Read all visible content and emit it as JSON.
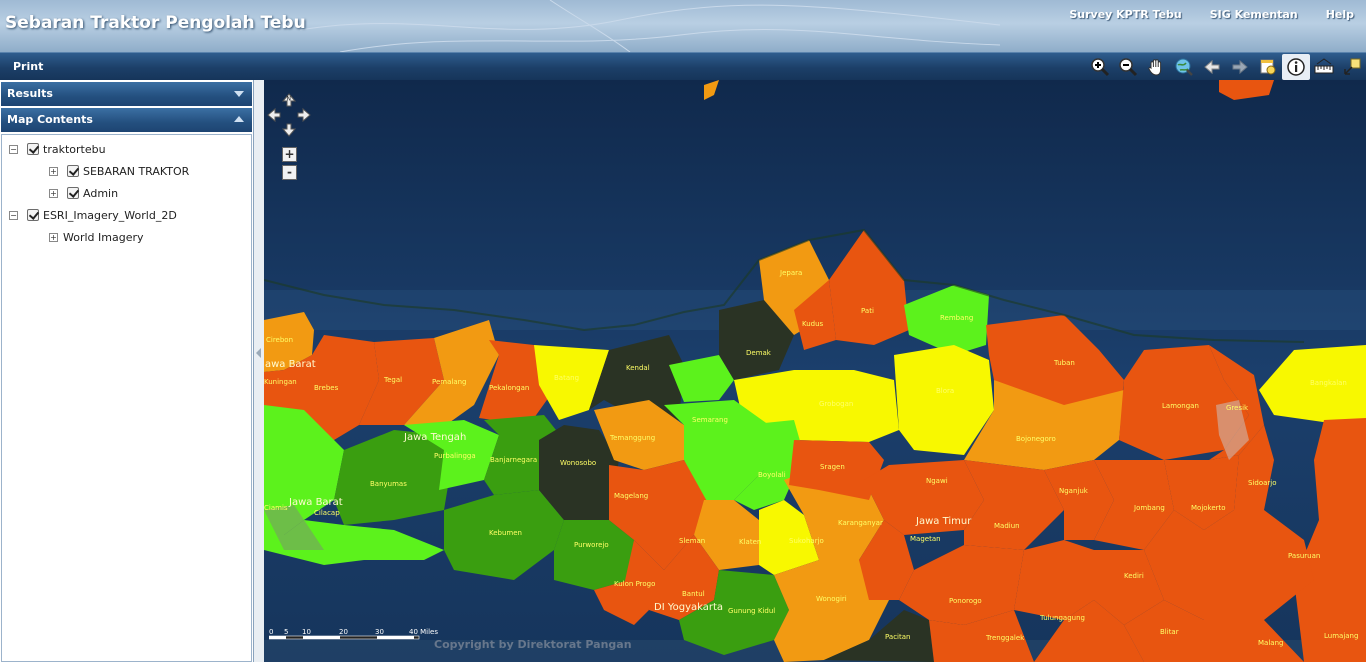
{
  "header": {
    "title": "Sebaran Traktor Pengolah Tebu",
    "links": [
      "Survey KPTR Tebu",
      "SIG Kementan",
      "Help"
    ]
  },
  "toolbar": {
    "print_label": "Print",
    "tools": [
      "zoom-in-icon",
      "zoom-out-icon",
      "pan-icon",
      "full-extent-icon",
      "back-icon",
      "forward-icon",
      "select-icon",
      "identify-icon",
      "measure-icon",
      "resize-icon"
    ]
  },
  "sidebar": {
    "results_label": "Results",
    "map_contents_label": "Map Contents",
    "layers": [
      {
        "label": "traktortebu"
      },
      {
        "label": "SEBARAN TRAKTOR"
      },
      {
        "label": "Admin"
      },
      {
        "label": "ESRI_Imagery_World_2D"
      },
      {
        "label": "World Imagery"
      }
    ]
  },
  "map": {
    "nav_north": "N",
    "zoom_in": "+",
    "zoom_out": "-",
    "scale_labels": [
      "0",
      "5",
      "10",
      "20",
      "30",
      "40 Miles"
    ],
    "copyright": "Copyright by Direktorat Pangan",
    "province_labels": [
      "Jawa Barat",
      "Jawa Tengah",
      "Jawa Barat",
      "Jawa Timur",
      "DI Yogyakarta"
    ],
    "district_labels": [
      "Jepara",
      "Pati",
      "Rembang",
      "Kudus",
      "Demak",
      "Cirebon",
      "Kuningan",
      "Brebes",
      "Tegal",
      "Pemalang",
      "Pekalongan",
      "Batang",
      "Kendal",
      "Semarang",
      "Grobogan",
      "Blora",
      "Tuban",
      "Bojonegoro",
      "Lamongan",
      "Gresik",
      "Bangkalan",
      "Purbalingga",
      "Banjarnegara",
      "Wonosobo",
      "Temanggung",
      "Boyolali",
      "Sragen",
      "Ngawi",
      "Madiun",
      "Nganjuk",
      "Jombang",
      "Mojokerto",
      "Sidoarjo",
      "Banyumas",
      "Cilacap",
      "Ciamis",
      "Kebumen",
      "Purworejo",
      "Magelang",
      "Klaten",
      "Sukoharjo",
      "Karanganyar",
      "Magetan",
      "Sleman",
      "Kulon Progo",
      "Bantul",
      "Gunung Kidul",
      "Wonogiri",
      "Pacitan",
      "Ponorogo",
      "Trenggalek",
      "Tulungagung",
      "Kediri",
      "Blitar",
      "Malang",
      "Pasuruan",
      "Lumajang"
    ]
  },
  "colors": {
    "header_bg": "#9fbad4",
    "toolbar_bg": "#1c3f68",
    "sea": "#0f2a4f",
    "high": "#e85510",
    "mid_high": "#f29a12",
    "mid": "#f8f800",
    "low": "#5cf21c",
    "lower": "#3a9e10",
    "none": "#2a3324"
  }
}
